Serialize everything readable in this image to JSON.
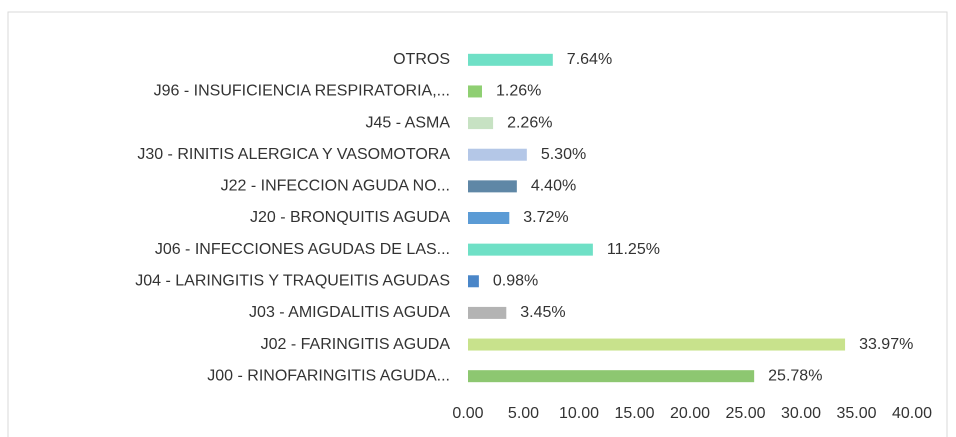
{
  "chart_data": {
    "type": "hbar",
    "categories": [
      "OTROS",
      "J96 - INSUFICIENCIA RESPIRATORIA,...",
      "J45 - ASMA",
      "J30 - RINITIS ALERGICA Y VASOMOTORA",
      "J22 - INFECCION AGUDA NO...",
      "J20 - BRONQUITIS AGUDA",
      "J06 - INFECCIONES AGUDAS DE LAS...",
      "J04 - LARINGITIS Y TRAQUEITIS AGUDAS",
      "J03 - AMIGDALITIS AGUDA",
      "J02 - FARINGITIS AGUDA",
      "J00 - RINOFARINGITIS AGUDA..."
    ],
    "values": [
      7.64,
      1.26,
      2.26,
      5.3,
      4.4,
      3.72,
      11.25,
      0.98,
      3.45,
      33.97,
      25.78
    ],
    "value_labels": [
      "7.64%",
      "1.26%",
      "2.26%",
      "5.30%",
      "4.40%",
      "3.72%",
      "11.25%",
      "0.98%",
      "3.45%",
      "33.97%",
      "25.78%"
    ],
    "colors": [
      "#6fe0c6",
      "#8fcf72",
      "#c7e2c3",
      "#b4c7e7",
      "#5f87a6",
      "#5b9bd5",
      "#6fe0c6",
      "#4a86c8",
      "#b3b3b3",
      "#c8e28c",
      "#8dc771"
    ],
    "xlim": [
      0,
      40
    ],
    "xticks": [
      {
        "value": 0,
        "label": "0.00"
      },
      {
        "value": 5,
        "label": "5.00"
      },
      {
        "value": 10,
        "label": "10.00"
      },
      {
        "value": 15,
        "label": "15.00"
      },
      {
        "value": 20,
        "label": "20.00"
      },
      {
        "value": 25,
        "label": "25.00"
      },
      {
        "value": 30,
        "label": "30.00"
      },
      {
        "value": 35,
        "label": "35.00"
      },
      {
        "value": 40,
        "label": "40.00"
      }
    ],
    "grid": false
  }
}
